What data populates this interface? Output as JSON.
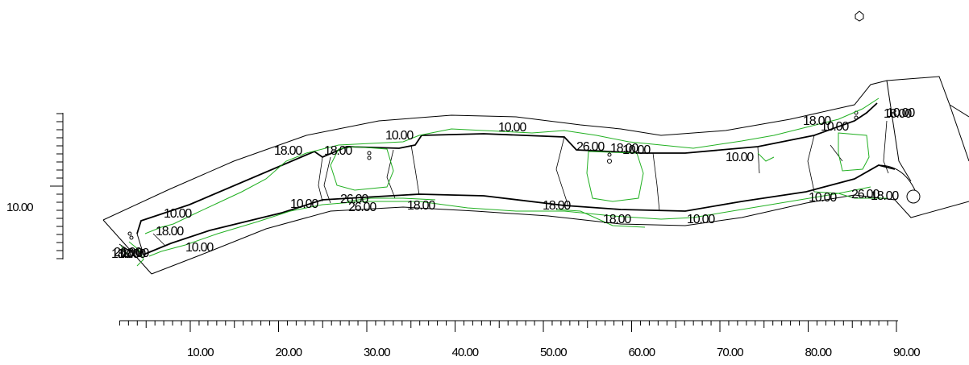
{
  "drawing": {
    "x_axis": {
      "min": 0,
      "max": 90,
      "major_step": 10,
      "minor_step": 1,
      "labels": [
        "10.00",
        "20.00",
        "30.00",
        "40.00",
        "50.00",
        "60.00",
        "70.00",
        "80.00",
        "90.00"
      ]
    },
    "y_axis": {
      "label": "10.00"
    },
    "contour_labels": [
      {
        "text": "10.00",
        "x": 0.0,
        "y": 0.0
      },
      {
        "text": "18.00",
        "x": 0.0,
        "y": 0.0
      },
      {
        "text": "10.00",
        "x": 0.0,
        "y": 0.0
      },
      {
        "text": "18.00",
        "x": 0.0,
        "y": 0.0
      },
      {
        "text": "10.00",
        "x": 0.0,
        "y": 0.0
      },
      {
        "text": "10.00",
        "x": 0.0,
        "y": 0.0
      },
      {
        "text": "26.00",
        "x": 0.0,
        "y": 0.0
      },
      {
        "text": "26.00",
        "x": 0.0,
        "y": 0.0
      },
      {
        "text": "18.00",
        "x": 0.0,
        "y": 0.0
      },
      {
        "text": "10.00",
        "x": 0.0,
        "y": 0.0
      },
      {
        "text": "10.00",
        "x": 0.0,
        "y": 0.0
      },
      {
        "text": "26.00",
        "x": 0.0,
        "y": 0.0
      },
      {
        "text": "18.00",
        "x": 0.0,
        "y": 0.0
      },
      {
        "text": "10.00",
        "x": 0.0,
        "y": 0.0
      },
      {
        "text": "18.00",
        "x": 0.0,
        "y": 0.0
      },
      {
        "text": "18.00",
        "x": 0.0,
        "y": 0.0
      },
      {
        "text": "10.00",
        "x": 0.0,
        "y": 0.0
      },
      {
        "text": "10.00",
        "x": 0.0,
        "y": 0.0
      },
      {
        "text": "18.00",
        "x": 0.0,
        "y": 0.0
      },
      {
        "text": "10.00",
        "x": 0.0,
        "y": 0.0
      },
      {
        "text": "18.00",
        "x": 0.0,
        "y": 0.0
      },
      {
        "text": "10.00",
        "x": 0.0,
        "y": 0.0
      },
      {
        "text": "26.00",
        "x": 0.0,
        "y": 0.0
      },
      {
        "text": "18.00",
        "x": 0.0,
        "y": 0.0
      },
      {
        "text": "18.00",
        "x": 0.0,
        "y": 0.0
      }
    ],
    "colors": {
      "outline": "#000000",
      "contour": "#22b022",
      "background": "#ffffff"
    }
  }
}
